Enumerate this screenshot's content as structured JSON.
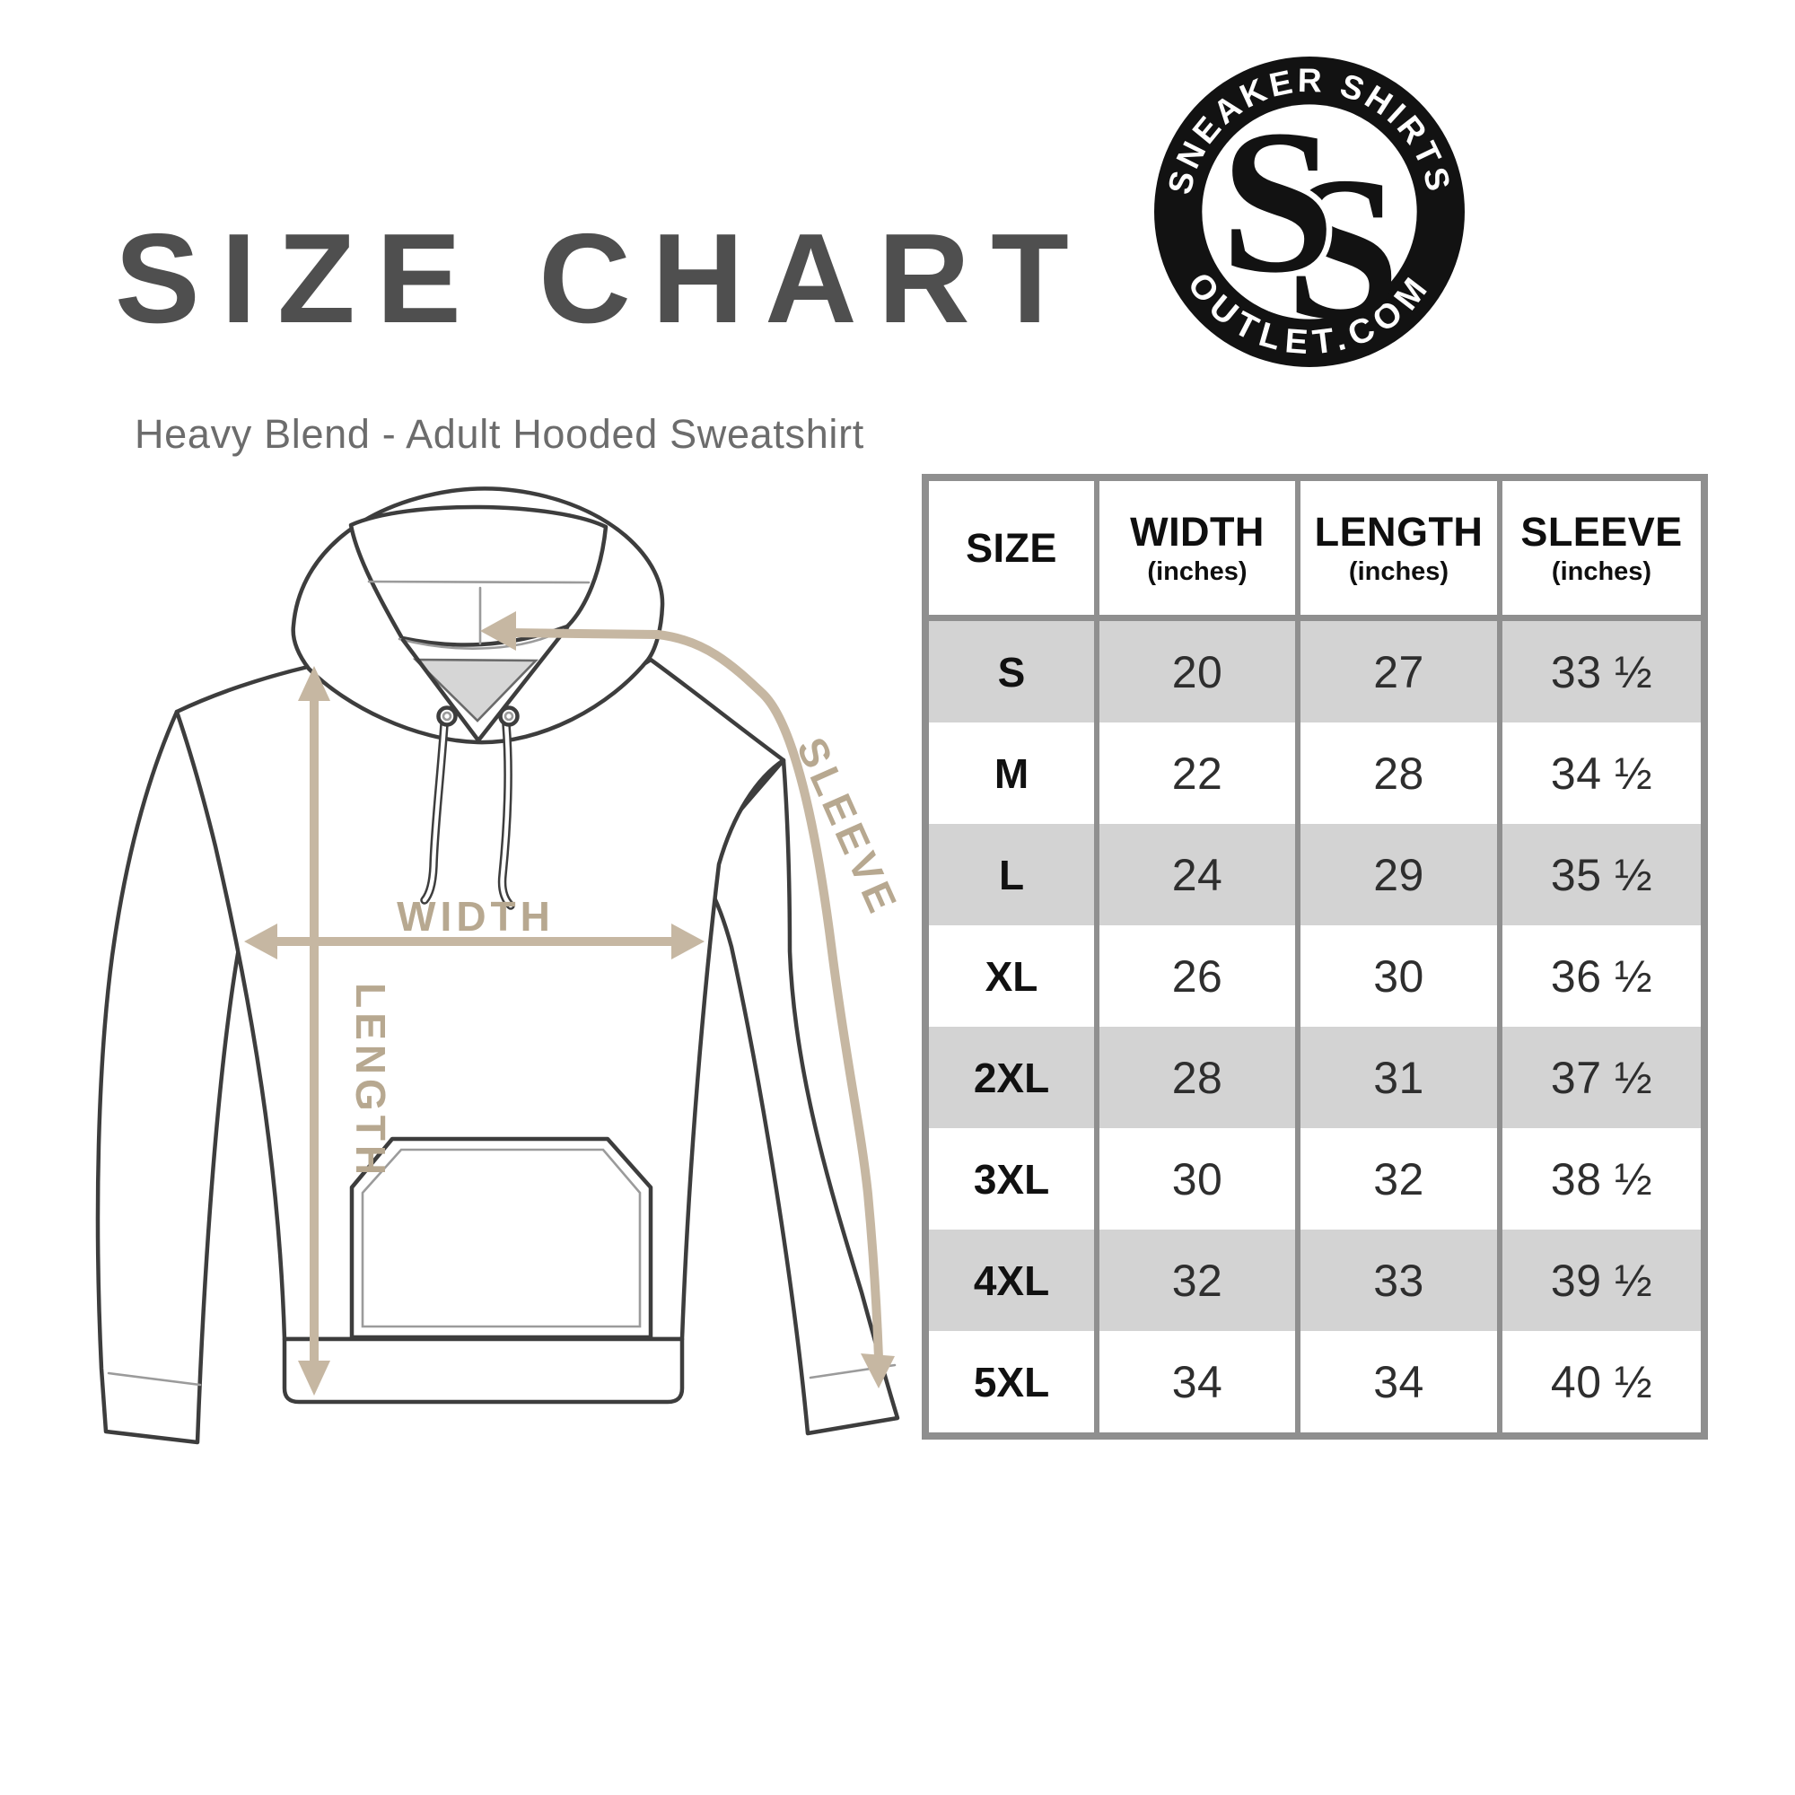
{
  "header": {
    "title": "SIZE CHART",
    "subtitle": "Heavy Blend - Adult Hooded Sweatshirt"
  },
  "logo": {
    "arc_top": "SNEAKER SHIRTS",
    "arc_bottom": "OUTLET.COM",
    "monogram_front": "S",
    "monogram_back": "S"
  },
  "diagram": {
    "width_label": "WIDTH",
    "length_label": "LENGTH",
    "sleeve_label": "SLEEVE"
  },
  "table": {
    "columns": [
      {
        "label": "SIZE",
        "sub": ""
      },
      {
        "label": "WIDTH",
        "sub": "(inches)"
      },
      {
        "label": "LENGTH",
        "sub": "(inches)"
      },
      {
        "label": "SLEEVE",
        "sub": "(inches)"
      }
    ],
    "rows": [
      {
        "size": "S",
        "width": "20",
        "length": "27",
        "sleeve": "33 ½"
      },
      {
        "size": "M",
        "width": "22",
        "length": "28",
        "sleeve": "34 ½"
      },
      {
        "size": "L",
        "width": "24",
        "length": "29",
        "sleeve": "35 ½"
      },
      {
        "size": "XL",
        "width": "26",
        "length": "30",
        "sleeve": "36 ½"
      },
      {
        "size": "2XL",
        "width": "28",
        "length": "31",
        "sleeve": "37 ½"
      },
      {
        "size": "3XL",
        "width": "30",
        "length": "32",
        "sleeve": "38 ½"
      },
      {
        "size": "4XL",
        "width": "32",
        "length": "33",
        "sleeve": "39 ½"
      },
      {
        "size": "5XL",
        "width": "34",
        "length": "34",
        "sleeve": "40 ½"
      }
    ]
  },
  "colors": {
    "title": "#4f4f4f",
    "subtitle": "#6c6c6c",
    "measure_tan": "#c6b7a2",
    "measure_label_tan": "#b7a890",
    "table_border": "#8f8f8f",
    "row_shade": "#d3d3d3",
    "logo_black": "#121212"
  }
}
